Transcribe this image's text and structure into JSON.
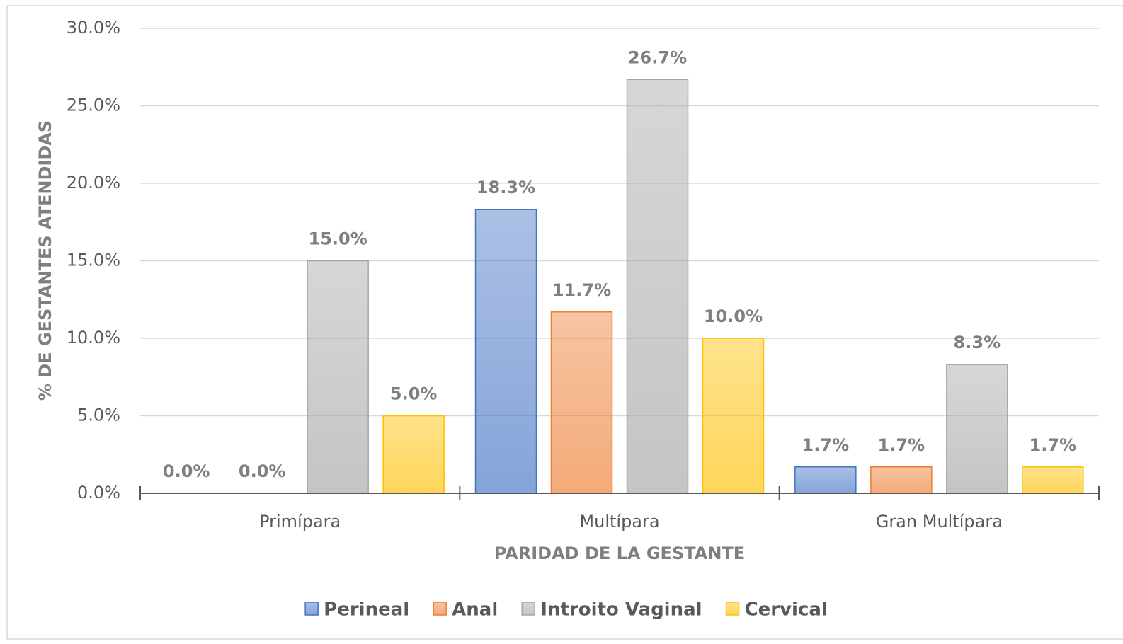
{
  "chart_data": {
    "type": "bar",
    "x_label": "PARIDAD DE LA GESTANTE",
    "y_label": "% DE GESTANTES ATENDIDAS",
    "categories": [
      "Primípara",
      "Multípara",
      "Gran Multípara"
    ],
    "series": [
      {
        "name": "Perineal",
        "color": "#4472c4",
        "values": [
          0,
          18.3,
          1.7
        ],
        "value_labels": [
          "0.0%",
          "18.3%",
          "1.7%"
        ]
      },
      {
        "name": "Anal",
        "color": "#ed7d31",
        "values": [
          0,
          11.7,
          1.7
        ],
        "value_labels": [
          "0.0%",
          "11.7%",
          "1.7%"
        ]
      },
      {
        "name": "Introito Vaginal",
        "color": "#a5a5a5",
        "values": [
          15,
          26.7,
          8.3
        ],
        "value_labels": [
          "15.0%",
          "26.7%",
          "8.3%"
        ]
      },
      {
        "name": "Cervical",
        "color": "#ffc000",
        "values": [
          5,
          10,
          1.7
        ],
        "value_labels": [
          "5.0%",
          "10.0%",
          "1.7%"
        ]
      }
    ],
    "ylim": [
      0,
      30
    ],
    "yticks": [
      {
        "value": 0,
        "label": "0.0%"
      },
      {
        "value": 5,
        "label": "5.0%"
      },
      {
        "value": 10,
        "label": "10.0%"
      },
      {
        "value": 15,
        "label": "15.0%"
      },
      {
        "value": 20,
        "label": "20.0%"
      },
      {
        "value": 25,
        "label": "25.0%"
      },
      {
        "value": 30,
        "label": "30.0%"
      }
    ],
    "grid": true,
    "legend": "bottom"
  }
}
